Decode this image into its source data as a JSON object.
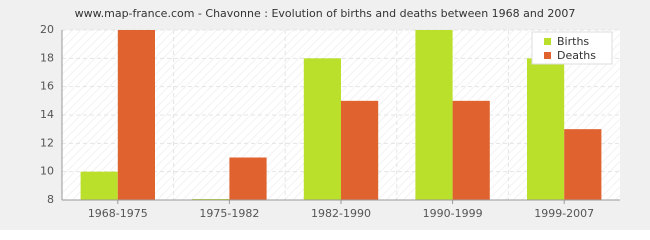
{
  "chart_data": {
    "type": "bar",
    "title": "www.map-france.com - Chavonne : Evolution of births and deaths between 1968 and 2007",
    "categories": [
      "1968-1975",
      "1975-1982",
      "1982-1990",
      "1990-1999",
      "1999-2007"
    ],
    "series": [
      {
        "name": "Births",
        "color": "#bbe02b",
        "values": [
          10,
          8,
          18,
          20,
          18
        ]
      },
      {
        "name": "Deaths",
        "color": "#e0622f",
        "values": [
          20,
          11,
          15,
          15,
          13
        ]
      }
    ],
    "ylim": [
      8,
      20
    ],
    "yticks": [
      8,
      10,
      12,
      14,
      16,
      18,
      20
    ],
    "grid": true,
    "legend": "top-right"
  }
}
